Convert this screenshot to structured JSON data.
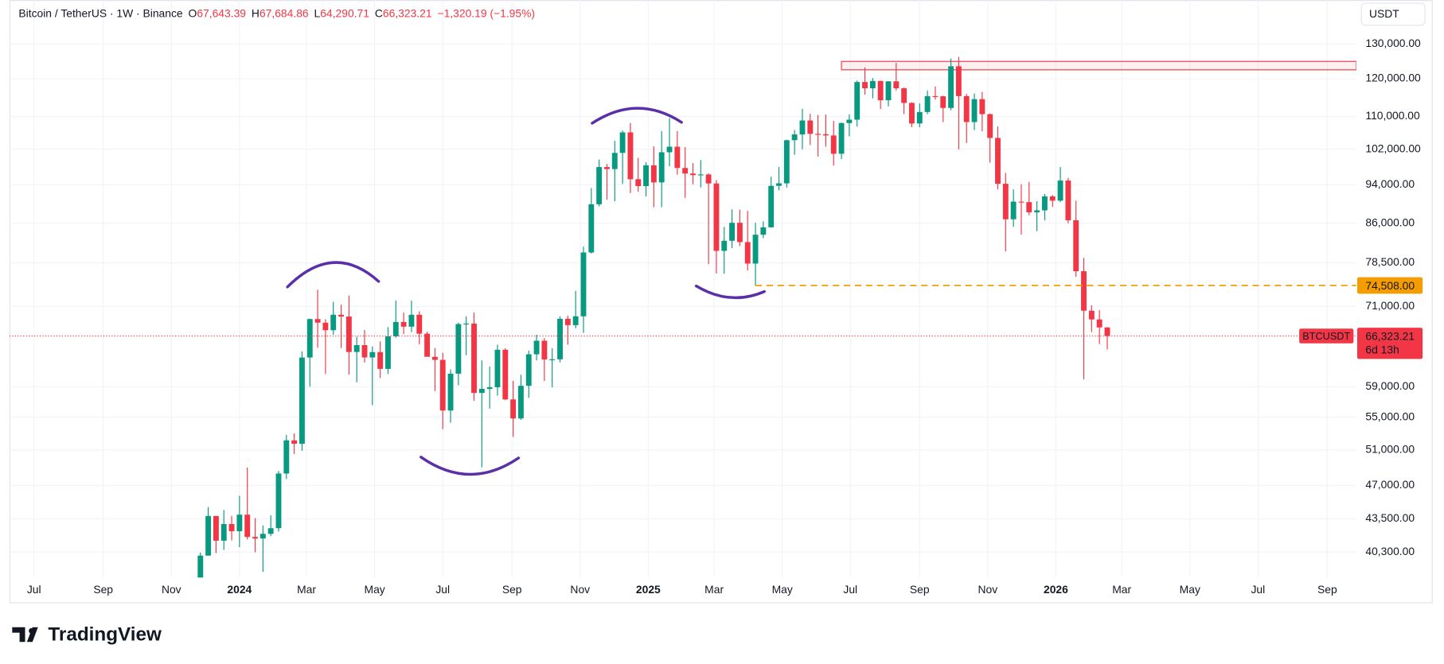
{
  "header": {
    "symbol": "Bitcoin / TetherUS · 1W · Binance",
    "ohlc": [
      {
        "label": "O",
        "value": "67,643.39"
      },
      {
        "label": "H",
        "value": "67,684.86"
      },
      {
        "label": "L",
        "value": "64,290.71"
      },
      {
        "label": "C",
        "value": "66,323.21"
      }
    ],
    "change": "−1,320.19 (−1.95%)"
  },
  "price_tag": {
    "symbol": "BTCUSDT",
    "countdown": "6d 13h"
  },
  "footer": {
    "brand": "TradingView"
  },
  "chart_data": {
    "type": "candlestick",
    "currency": "USDT",
    "log_scale": true,
    "grid": true,
    "up_color": "#089981",
    "down_color": "#f23645",
    "ylim": [
      38000,
      143900
    ],
    "yticks": [
      {
        "value": 130000,
        "label": "130,000.00"
      },
      {
        "value": 120000,
        "label": "120,000.00"
      },
      {
        "value": 110000,
        "label": "110,000.00"
      },
      {
        "value": 102000,
        "label": "102,000.00"
      },
      {
        "value": 94000,
        "label": "94,000.00"
      },
      {
        "value": 86000,
        "label": "86,000.00"
      },
      {
        "value": 78500,
        "label": "78,500.00"
      },
      {
        "value": 71000,
        "label": "71,000.00"
      },
      {
        "value": 59000,
        "label": "59,000.00"
      },
      {
        "value": 55000,
        "label": "55,000.00"
      },
      {
        "value": 51000,
        "label": "51,000.00"
      },
      {
        "value": 47000,
        "label": "47,000.00"
      },
      {
        "value": 43500,
        "label": "43,500.00"
      },
      {
        "value": 40300,
        "label": "40,300.00"
      }
    ],
    "xlim": [
      "2023-06-09",
      "2026-09-27"
    ],
    "xticks": [
      {
        "value": "2023-07-01",
        "label": "Jul"
      },
      {
        "value": "2023-09-01",
        "label": "Sep"
      },
      {
        "value": "2023-11-01",
        "label": "Nov"
      },
      {
        "value": "2024-01-01",
        "label": "2024"
      },
      {
        "value": "2024-03-01",
        "label": "Mar"
      },
      {
        "value": "2024-05-01",
        "label": "May"
      },
      {
        "value": "2024-07-01",
        "label": "Jul"
      },
      {
        "value": "2024-09-01",
        "label": "Sep"
      },
      {
        "value": "2024-11-01",
        "label": "Nov"
      },
      {
        "value": "2025-01-01",
        "label": "2025"
      },
      {
        "value": "2025-03-01",
        "label": "Mar"
      },
      {
        "value": "2025-05-01",
        "label": "May"
      },
      {
        "value": "2025-07-01",
        "label": "Jul"
      },
      {
        "value": "2025-09-01",
        "label": "Sep"
      },
      {
        "value": "2025-11-01",
        "label": "Nov"
      },
      {
        "value": "2026-01-01",
        "label": "2026"
      },
      {
        "value": "2026-03-01",
        "label": "Mar"
      },
      {
        "value": "2026-05-01",
        "label": "May"
      },
      {
        "value": "2026-07-01",
        "label": "Jul"
      },
      {
        "value": "2026-09-01",
        "label": "Sep"
      }
    ],
    "levels": [
      {
        "value": 74508,
        "label": "74,508.00",
        "color": "#f59c00",
        "start": "2025-04-07"
      }
    ],
    "zone": {
      "low": 122500,
      "high": 124900,
      "start": "2025-06-23",
      "color": "#f23645"
    },
    "candles": [
      [
        "2023-11-27",
        37450,
        40250,
        37150,
        39970
      ],
      [
        "2023-12-04",
        39970,
        44700,
        39970,
        43800
      ],
      [
        "2023-12-11",
        43790,
        43800,
        40200,
        41370
      ],
      [
        "2023-12-18",
        41370,
        44400,
        40500,
        42990
      ],
      [
        "2023-12-25",
        42990,
        43800,
        41400,
        42280
      ],
      [
        "2024-01-01",
        42280,
        45880,
        40750,
        43930
      ],
      [
        "2024-01-08",
        43930,
        48970,
        41500,
        41730
      ],
      [
        "2024-01-15",
        41730,
        43580,
        40280,
        41580
      ],
      [
        "2024-01-22",
        41580,
        42850,
        38500,
        42030
      ],
      [
        "2024-01-29",
        42030,
        43850,
        41800,
        42580
      ],
      [
        "2024-02-05",
        42580,
        48590,
        42260,
        48300
      ],
      [
        "2024-02-12",
        48300,
        52800,
        47700,
        52140
      ],
      [
        "2024-02-19",
        52140,
        52990,
        50520,
        51730
      ],
      [
        "2024-02-26",
        51730,
        64000,
        50900,
        63110
      ],
      [
        "2024-03-04",
        63110,
        69000,
        59000,
        68960
      ],
      [
        "2024-03-11",
        68960,
        73780,
        64550,
        68390
      ],
      [
        "2024-03-18",
        68390,
        68920,
        60760,
        67210
      ],
      [
        "2024-03-25",
        67210,
        71770,
        66500,
        69650
      ],
      [
        "2024-04-01",
        69650,
        71290,
        64500,
        69360
      ],
      [
        "2024-04-08",
        69360,
        72800,
        60660,
        63920
      ],
      [
        "2024-04-15",
        63920,
        66200,
        59600,
        64940
      ],
      [
        "2024-04-22",
        64940,
        67230,
        62390,
        63120
      ],
      [
        "2024-04-29",
        63120,
        64740,
        56550,
        63900
      ],
      [
        "2024-05-06",
        63900,
        65500,
        60190,
        61480
      ],
      [
        "2024-05-13",
        61480,
        67700,
        60750,
        66270
      ],
      [
        "2024-05-20",
        66270,
        71980,
        66060,
        68500
      ],
      [
        "2024-05-27",
        68500,
        70000,
        66600,
        67760
      ],
      [
        "2024-06-03",
        67760,
        71950,
        66900,
        69650
      ],
      [
        "2024-06-10",
        69650,
        70200,
        65070,
        66670
      ],
      [
        "2024-06-17",
        66670,
        66990,
        63380,
        63210
      ],
      [
        "2024-06-24",
        63210,
        64500,
        58400,
        62770
      ],
      [
        "2024-07-01",
        62770,
        63800,
        53500,
        55850
      ],
      [
        "2024-07-08",
        55850,
        61400,
        54300,
        60800
      ],
      [
        "2024-07-15",
        60800,
        68400,
        59200,
        68170
      ],
      [
        "2024-07-22",
        68170,
        69400,
        63450,
        68250
      ],
      [
        "2024-07-29",
        68250,
        70000,
        57100,
        58160
      ],
      [
        "2024-08-05",
        58160,
        62700,
        49000,
        58710
      ],
      [
        "2024-08-12",
        58710,
        61800,
        56100,
        58930
      ],
      [
        "2024-08-19",
        58930,
        65000,
        57800,
        64250
      ],
      [
        "2024-08-26",
        64250,
        64480,
        57200,
        57300
      ],
      [
        "2024-09-02",
        57300,
        59800,
        52550,
        54840
      ],
      [
        "2024-09-09",
        54840,
        60650,
        54650,
        59130
      ],
      [
        "2024-09-16",
        59130,
        64130,
        57500,
        63580
      ],
      [
        "2024-09-23",
        63580,
        66500,
        62700,
        65600
      ],
      [
        "2024-09-30",
        65600,
        66000,
        59800,
        62820
      ],
      [
        "2024-10-07",
        62820,
        64470,
        58900,
        62850
      ],
      [
        "2024-10-14",
        62850,
        69400,
        62400,
        69000
      ],
      [
        "2024-10-21",
        69000,
        69500,
        65000,
        68000
      ],
      [
        "2024-10-28",
        68000,
        73600,
        67500,
        69400
      ],
      [
        "2024-11-04",
        69400,
        81500,
        66800,
        80400
      ],
      [
        "2024-11-11",
        80400,
        93265,
        80200,
        89850
      ],
      [
        "2024-11-18",
        89850,
        99600,
        89400,
        97900
      ],
      [
        "2024-11-25",
        97900,
        98600,
        90800,
        97450
      ],
      [
        "2024-12-02",
        97450,
        104000,
        90500,
        101150
      ],
      [
        "2024-12-09",
        101150,
        106500,
        94150,
        106050
      ],
      [
        "2024-12-16",
        106050,
        108350,
        92200,
        95200
      ],
      [
        "2024-12-23",
        95200,
        100000,
        92500,
        93700
      ],
      [
        "2024-12-30",
        93700,
        99000,
        91500,
        98300
      ],
      [
        "2025-01-06",
        98300,
        102700,
        89250,
        94500
      ],
      [
        "2025-01-13",
        94500,
        106400,
        89250,
        101300
      ],
      [
        "2025-01-20",
        101300,
        109600,
        98100,
        102600
      ],
      [
        "2025-01-27",
        102600,
        106400,
        96200,
        97700
      ],
      [
        "2025-02-03",
        97700,
        102500,
        91200,
        96450
      ],
      [
        "2025-02-10",
        96450,
        98800,
        94100,
        96100
      ],
      [
        "2025-02-17",
        96100,
        99500,
        93400,
        96250
      ],
      [
        "2025-02-24",
        96250,
        96500,
        78250,
        94270
      ],
      [
        "2025-03-03",
        94270,
        95000,
        76600,
        80700
      ],
      [
        "2025-03-10",
        80700,
        85300,
        76550,
        82600
      ],
      [
        "2025-03-17",
        82600,
        88800,
        81200,
        86100
      ],
      [
        "2025-03-24",
        86100,
        88750,
        81600,
        82350
      ],
      [
        "2025-03-31",
        82350,
        88500,
        77150,
        78370
      ],
      [
        "2025-04-07",
        78370,
        86100,
        74508,
        83760
      ],
      [
        "2025-04-14",
        83760,
        86400,
        83100,
        85200
      ],
      [
        "2025-04-21",
        85200,
        95750,
        85150,
        93750
      ],
      [
        "2025-04-28",
        93750,
        97900,
        92800,
        94300
      ],
      [
        "2025-05-05",
        94300,
        104300,
        93400,
        104150
      ],
      [
        "2025-05-12",
        104150,
        106650,
        100700,
        105550
      ],
      [
        "2025-05-19",
        105550,
        111980,
        102000,
        109000
      ],
      [
        "2025-05-26",
        109000,
        110700,
        103000,
        105700
      ],
      [
        "2025-06-02",
        105700,
        110400,
        100300,
        105600
      ],
      [
        "2025-06-09",
        105600,
        110500,
        102600,
        105300
      ],
      [
        "2025-06-16",
        105300,
        108900,
        98200,
        100950
      ],
      [
        "2025-06-23",
        100950,
        108500,
        99700,
        108350
      ],
      [
        "2025-06-30",
        108350,
        110550,
        105100,
        109200
      ],
      [
        "2025-07-07",
        109200,
        119500,
        107500,
        119100
      ],
      [
        "2025-07-14",
        119100,
        123200,
        115700,
        117400
      ],
      [
        "2025-07-21",
        117400,
        120200,
        114700,
        119400
      ],
      [
        "2025-07-28",
        119400,
        119500,
        111900,
        114200
      ],
      [
        "2025-08-04",
        114200,
        119300,
        112600,
        119300
      ],
      [
        "2025-08-11",
        119300,
        124500,
        116800,
        117400
      ],
      [
        "2025-08-18",
        117400,
        117600,
        110600,
        113500
      ],
      [
        "2025-08-25",
        113500,
        113700,
        107300,
        108250
      ],
      [
        "2025-09-01",
        108250,
        113400,
        107300,
        111150
      ],
      [
        "2025-09-08",
        111150,
        116800,
        110600,
        115300
      ],
      [
        "2025-09-15",
        115300,
        117900,
        114400,
        115250
      ],
      [
        "2025-09-22",
        115250,
        115400,
        108600,
        112200
      ],
      [
        "2025-09-29",
        112200,
        125700,
        111600,
        123500
      ],
      [
        "2025-10-06",
        123500,
        126200,
        102000,
        115300
      ],
      [
        "2025-10-13",
        115300,
        115900,
        103500,
        108600
      ],
      [
        "2025-10-20",
        108600,
        116000,
        106600,
        114500
      ],
      [
        "2025-10-27",
        114500,
        116400,
        106300,
        110600
      ],
      [
        "2025-11-03",
        110600,
        110800,
        98900,
        104700
      ],
      [
        "2025-11-10",
        104700,
        107500,
        93000,
        94200
      ],
      [
        "2025-11-17",
        94200,
        96600,
        80600,
        86800
      ],
      [
        "2025-11-24",
        86800,
        93000,
        85300,
        90400
      ],
      [
        "2025-12-01",
        90400,
        94100,
        83800,
        90300
      ],
      [
        "2025-12-08",
        90300,
        94600,
        87600,
        88200
      ],
      [
        "2025-12-15",
        88200,
        90500,
        84450,
        88600
      ],
      [
        "2025-12-22",
        88600,
        92000,
        86600,
        91500
      ],
      [
        "2025-12-29",
        91500,
        91800,
        89300,
        90600
      ],
      [
        "2026-01-05",
        90600,
        97900,
        90300,
        94900
      ],
      [
        "2026-01-12",
        94900,
        95500,
        86000,
        86600
      ],
      [
        "2026-01-19",
        86600,
        90600,
        76000,
        77000
      ],
      [
        "2026-01-26",
        77000,
        79400,
        60000,
        70300
      ],
      [
        "2026-02-02",
        70300,
        71200,
        66900,
        68900
      ],
      [
        "2026-02-09",
        68900,
        70400,
        65100,
        67643.39
      ],
      [
        "2026-02-16",
        67643.39,
        67684.86,
        64290.71,
        66323.21
      ]
    ]
  }
}
